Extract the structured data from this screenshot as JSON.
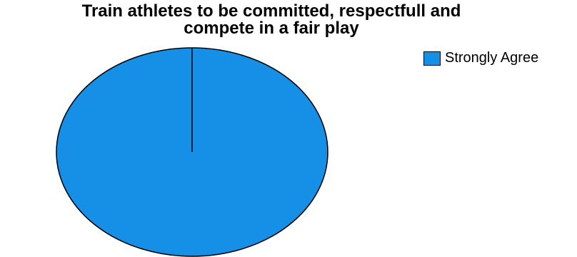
{
  "chart_data": {
    "type": "pie",
    "title": "Train athletes to be committed, respectfull and compete in a fair play",
    "title_lines": [
      "Train athletes to be committed, respectfull and",
      "compete in a fair play"
    ],
    "categories": [
      "Strongly Agree"
    ],
    "values": [
      100
    ],
    "colors": [
      "#1590e6"
    ],
    "legend_position": "top-right"
  }
}
